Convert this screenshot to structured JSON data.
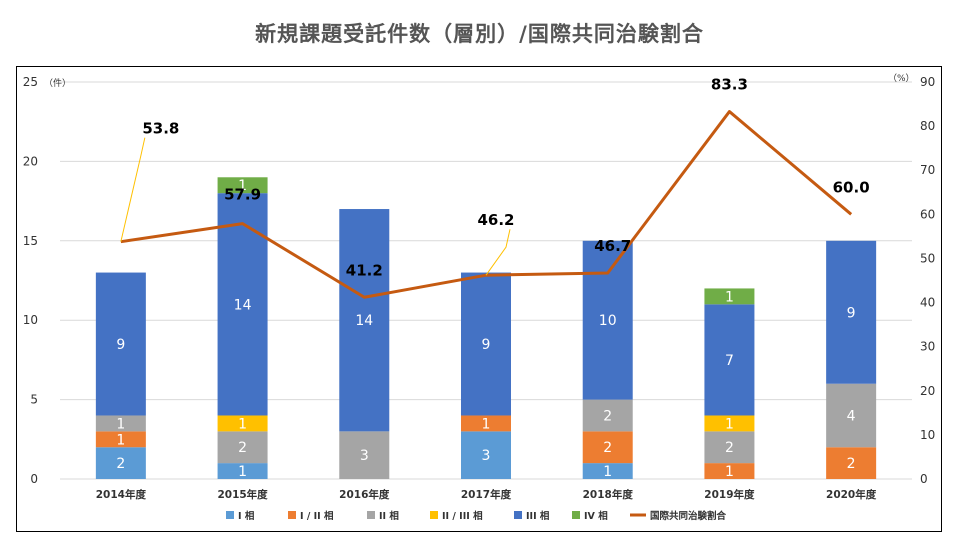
{
  "title": "新規課題受託件数（層別）/国際共同治験割合",
  "chart_data": {
    "type": "bar",
    "stacked": true,
    "categories": [
      "2014年度",
      "2015年度",
      "2016年度",
      "2017年度",
      "2018年度",
      "2019年度",
      "2020年度"
    ],
    "series": [
      {
        "name": "I 相",
        "color": "#5b9bd5",
        "values": [
          2,
          1,
          0,
          3,
          1,
          0,
          0
        ]
      },
      {
        "name": "I / II 相",
        "color": "#ed7d31",
        "values": [
          1,
          0,
          0,
          1,
          2,
          1,
          2
        ]
      },
      {
        "name": "II 相",
        "color": "#a5a5a5",
        "values": [
          1,
          2,
          3,
          0,
          2,
          2,
          4
        ]
      },
      {
        "name": "II / III 相",
        "color": "#ffc000",
        "values": [
          0,
          1,
          0,
          0,
          0,
          1,
          0
        ]
      },
      {
        "name": "III 相",
        "color": "#4472c4",
        "values": [
          9,
          14,
          14,
          9,
          10,
          7,
          9
        ]
      },
      {
        "name": "IV 相",
        "color": "#70ad47",
        "values": [
          0,
          1,
          0,
          0,
          0,
          1,
          0
        ]
      }
    ],
    "line_series": {
      "name": "国際共同治験割合",
      "color": "#c55a11",
      "axis": "right",
      "values": [
        53.8,
        57.9,
        41.2,
        46.2,
        46.7,
        83.3,
        60.0
      ],
      "labels": [
        "53.8",
        "57.9",
        "41.2",
        "46.2",
        "46.7",
        "83.3",
        "60.0"
      ]
    },
    "y_left": {
      "unit": "（件）",
      "ylim": [
        0,
        25
      ],
      "ticks": [
        "0",
        "5",
        "10",
        "15",
        "20",
        "25"
      ]
    },
    "y_right": {
      "unit": "（%）",
      "ylim": [
        0,
        90
      ],
      "ticks": [
        "0",
        "10",
        "20",
        "30",
        "40",
        "50",
        "60",
        "70",
        "80",
        "90"
      ]
    },
    "grid": true,
    "legend_position": "bottom"
  }
}
